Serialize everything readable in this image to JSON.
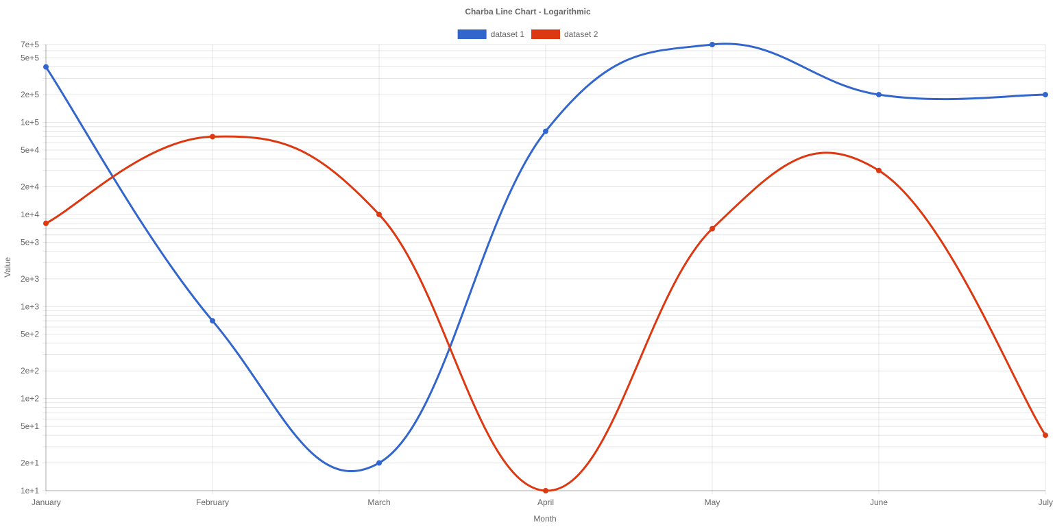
{
  "chart_data": {
    "type": "line",
    "title": "Charba Line Chart - Logarithmic",
    "xlabel": "Month",
    "ylabel": "Value",
    "y_scale": "log",
    "ylim": [
      10,
      700000
    ],
    "y_tick_labels": [
      "1e+1",
      "2e+1",
      "5e+1",
      "1e+2",
      "2e+2",
      "5e+2",
      "1e+3",
      "2e+3",
      "5e+3",
      "1e+4",
      "2e+4",
      "5e+4",
      "1e+5",
      "2e+5",
      "5e+5",
      "7e+5"
    ],
    "y_tick_values": [
      10,
      20,
      50,
      100,
      200,
      500,
      1000,
      2000,
      5000,
      10000,
      20000,
      50000,
      100000,
      200000,
      500000,
      700000
    ],
    "categories": [
      "January",
      "February",
      "March",
      "April",
      "May",
      "June",
      "July"
    ],
    "grid": true,
    "legend_position": "top",
    "series": [
      {
        "name": "dataset 1",
        "color": "#3366cc",
        "values": [
          400000,
          700,
          20,
          80000,
          700000,
          200000,
          200000
        ]
      },
      {
        "name": "dataset 2",
        "color": "#dc3912",
        "values": [
          8000,
          70000,
          10000,
          10,
          7000,
          30000,
          40
        ]
      }
    ]
  }
}
